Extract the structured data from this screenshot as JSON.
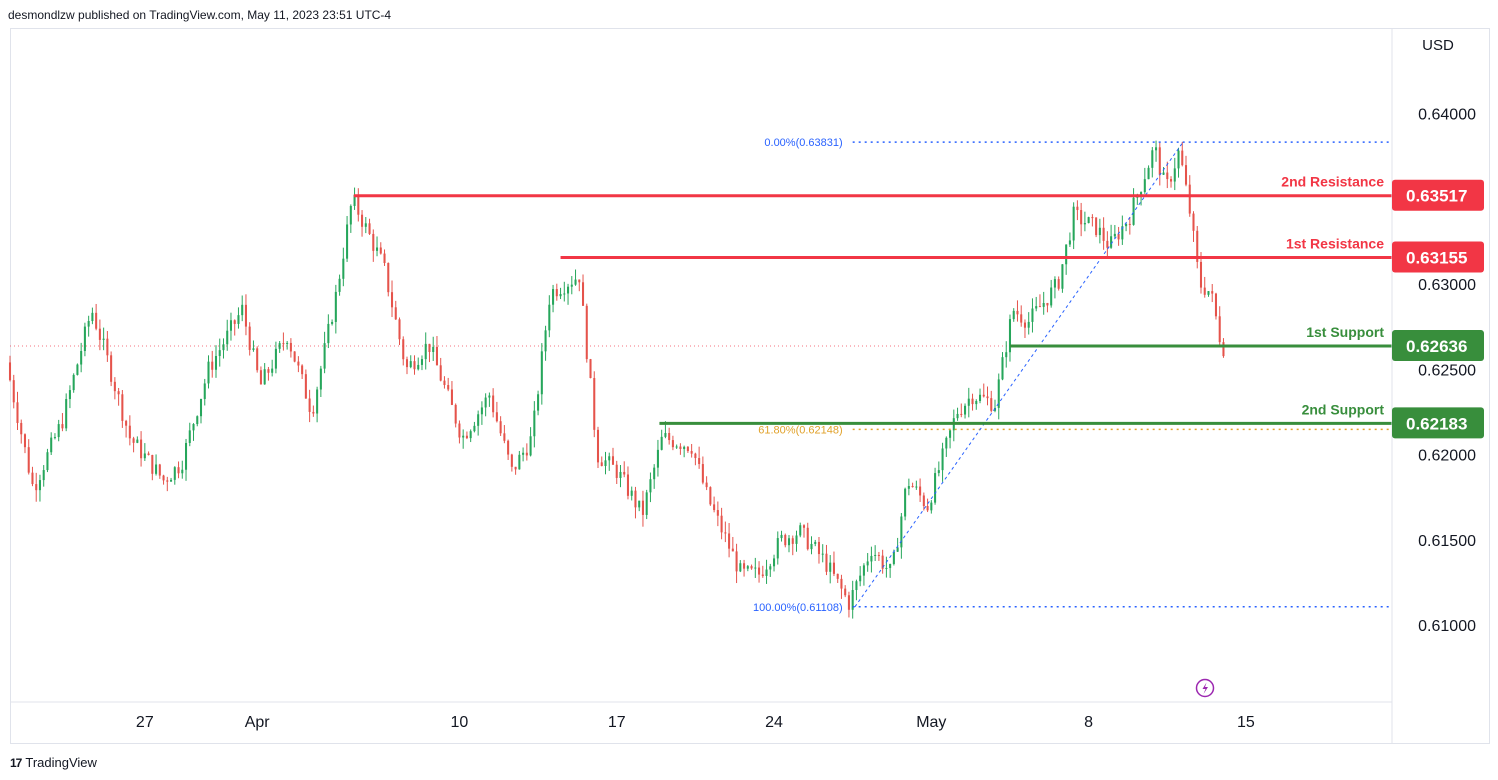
{
  "header": {
    "published": "desmondlzw published on TradingView.com, May 11, 2023 23:51 UTC-4"
  },
  "footer": {
    "brand": "TradingView",
    "logo_glyph": "17"
  },
  "chart_data": {
    "type": "candlestick",
    "currency": "USD",
    "ylim": [
      0.6055,
      0.645
    ],
    "y_ticks": [
      "0.64000",
      "0.63000",
      "0.62500",
      "0.62000",
      "0.61500",
      "0.61000"
    ],
    "x_ticks": [
      {
        "label": "27",
        "day": 6
      },
      {
        "label": "Apr",
        "day": 11
      },
      {
        "label": "10",
        "day": 20
      },
      {
        "label": "17",
        "day": 27
      },
      {
        "label": "24",
        "day": 34
      },
      {
        "label": "May",
        "day": 41
      },
      {
        "label": "8",
        "day": 48
      },
      {
        "label": "15",
        "day": 55
      }
    ],
    "x_axis": {
      "first_day": 0,
      "last_day": 61.5,
      "day_of_first_candle": 0
    },
    "candles_per_day": 6,
    "colors": {
      "up": "#26a65b",
      "down": "#e5534b",
      "up_axis": "#22ab94",
      "resistance": "#f23645",
      "support": "#388e3c",
      "fib": "#2962ff",
      "fib_618": "#e1a22b",
      "current": "#f23645"
    },
    "levels": [
      {
        "name": "2nd Resistance",
        "value": 0.63517,
        "label": "0.63517",
        "kind": "resistance",
        "from_day": 15.3
      },
      {
        "name": "1st Resistance",
        "value": 0.63155,
        "label": "0.63155",
        "kind": "resistance",
        "from_day": 24.5
      },
      {
        "name": "1st Support",
        "value": 0.62636,
        "label": "0.62636",
        "kind": "support",
        "from_day": 44.5
      },
      {
        "name": "2nd Support",
        "value": 0.62183,
        "label": "0.62183",
        "kind": "support",
        "from_day": 28.9
      }
    ],
    "fib_levels": [
      {
        "label": "0.00%(0.63831)",
        "value": 0.63831,
        "from_day": 37.5
      },
      {
        "label": "61.80%(0.62148)",
        "value": 0.62148,
        "from_day": 37.5
      },
      {
        "label": "100.00%(0.61108)",
        "value": 0.61108,
        "from_day": 37.5
      }
    ],
    "fib_trend": {
      "from": {
        "day": 37.6,
        "value": 0.61108
      },
      "to": {
        "day": 52.2,
        "value": 0.63831
      }
    },
    "current_price": 0.62636,
    "anchors": [
      [
        0,
        0.6254
      ],
      [
        1.2,
        0.618
      ],
      [
        2.5,
        0.622
      ],
      [
        3.8,
        0.6285
      ],
      [
        4.4,
        0.626
      ],
      [
        5.5,
        0.621
      ],
      [
        7,
        0.6185
      ],
      [
        7.8,
        0.6195
      ],
      [
        9,
        0.625
      ],
      [
        10.5,
        0.6285
      ],
      [
        11.3,
        0.624
      ],
      [
        12.5,
        0.627
      ],
      [
        13.6,
        0.6225
      ],
      [
        14.7,
        0.6295
      ],
      [
        15.4,
        0.635
      ],
      [
        16.8,
        0.631
      ],
      [
        17.8,
        0.625
      ],
      [
        18.8,
        0.6265
      ],
      [
        20.3,
        0.621
      ],
      [
        21.5,
        0.6235
      ],
      [
        22.5,
        0.619
      ],
      [
        23.4,
        0.621
      ],
      [
        24.2,
        0.6295
      ],
      [
        25.5,
        0.6305
      ],
      [
        26.3,
        0.62
      ],
      [
        27.2,
        0.619
      ],
      [
        28.3,
        0.6165
      ],
      [
        29.2,
        0.621
      ],
      [
        30.5,
        0.6205
      ],
      [
        31.2,
        0.6175
      ],
      [
        32.7,
        0.613
      ],
      [
        33.5,
        0.613
      ],
      [
        34.5,
        0.615
      ],
      [
        35.3,
        0.6155
      ],
      [
        36.4,
        0.6138
      ],
      [
        37.5,
        0.6113
      ],
      [
        38.5,
        0.6145
      ],
      [
        39.4,
        0.613
      ],
      [
        40.1,
        0.6185
      ],
      [
        41,
        0.617
      ],
      [
        42.3,
        0.6225
      ],
      [
        43,
        0.6235
      ],
      [
        44,
        0.623
      ],
      [
        44.8,
        0.6285
      ],
      [
        45.5,
        0.6278
      ],
      [
        46.8,
        0.63
      ],
      [
        47.5,
        0.634
      ],
      [
        48.5,
        0.6333
      ],
      [
        49.1,
        0.6322
      ],
      [
        50,
        0.634
      ],
      [
        51.1,
        0.638
      ],
      [
        51.6,
        0.6355
      ],
      [
        52.2,
        0.6378
      ],
      [
        52.7,
        0.634
      ],
      [
        53.1,
        0.63
      ],
      [
        53.6,
        0.6295
      ],
      [
        54.1,
        0.6263
      ]
    ]
  }
}
